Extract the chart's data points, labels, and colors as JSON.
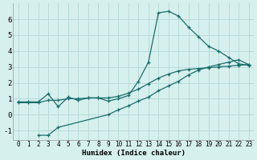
{
  "xlabel": "Humidex (Indice chaleur)",
  "background_color": "#d6f0ee",
  "grid_color": "#b8dbd8",
  "line_color": "#1a6e6a",
  "ylim": [
    -1.6,
    7.0
  ],
  "xlim": [
    -0.5,
    23.5
  ],
  "yticks": [
    -1,
    0,
    1,
    2,
    3,
    4,
    5,
    6
  ],
  "xticks": [
    0,
    1,
    2,
    3,
    4,
    5,
    6,
    7,
    8,
    9,
    10,
    11,
    12,
    13,
    14,
    15,
    16,
    17,
    18,
    19,
    20,
    21,
    22,
    23
  ],
  "line1_x": [
    0,
    1,
    2,
    3,
    4,
    5,
    6,
    7,
    8,
    9,
    10,
    11,
    12,
    13,
    14,
    15,
    16,
    17,
    18,
    19,
    20,
    21,
    22,
    23
  ],
  "line1_y": [
    0.8,
    0.8,
    0.8,
    1.3,
    0.5,
    1.1,
    0.9,
    1.05,
    1.05,
    0.85,
    1.0,
    1.2,
    2.1,
    3.3,
    6.4,
    6.5,
    6.2,
    5.5,
    4.9,
    4.3,
    4.0,
    3.6,
    3.2,
    3.1
  ],
  "line2_x": [
    2,
    3,
    4,
    9,
    10,
    11,
    12,
    13,
    14,
    15,
    16,
    17,
    18,
    19,
    20,
    21,
    22,
    23
  ],
  "line2_y": [
    -1.3,
    -1.3,
    -0.8,
    0.0,
    0.3,
    0.55,
    0.85,
    1.1,
    1.5,
    1.8,
    2.1,
    2.5,
    2.8,
    3.0,
    3.15,
    3.3,
    3.45,
    3.15
  ],
  "line3_x": [
    0,
    1,
    2,
    3,
    4,
    5,
    6,
    7,
    8,
    9,
    10,
    11,
    12,
    13,
    14,
    15,
    16,
    17,
    18,
    19,
    20,
    21,
    22,
    23
  ],
  "line3_y": [
    0.75,
    0.75,
    0.75,
    0.9,
    0.9,
    1.0,
    1.0,
    1.05,
    1.05,
    1.05,
    1.15,
    1.35,
    1.6,
    1.95,
    2.3,
    2.55,
    2.75,
    2.85,
    2.9,
    2.95,
    3.0,
    3.05,
    3.1,
    3.15
  ]
}
